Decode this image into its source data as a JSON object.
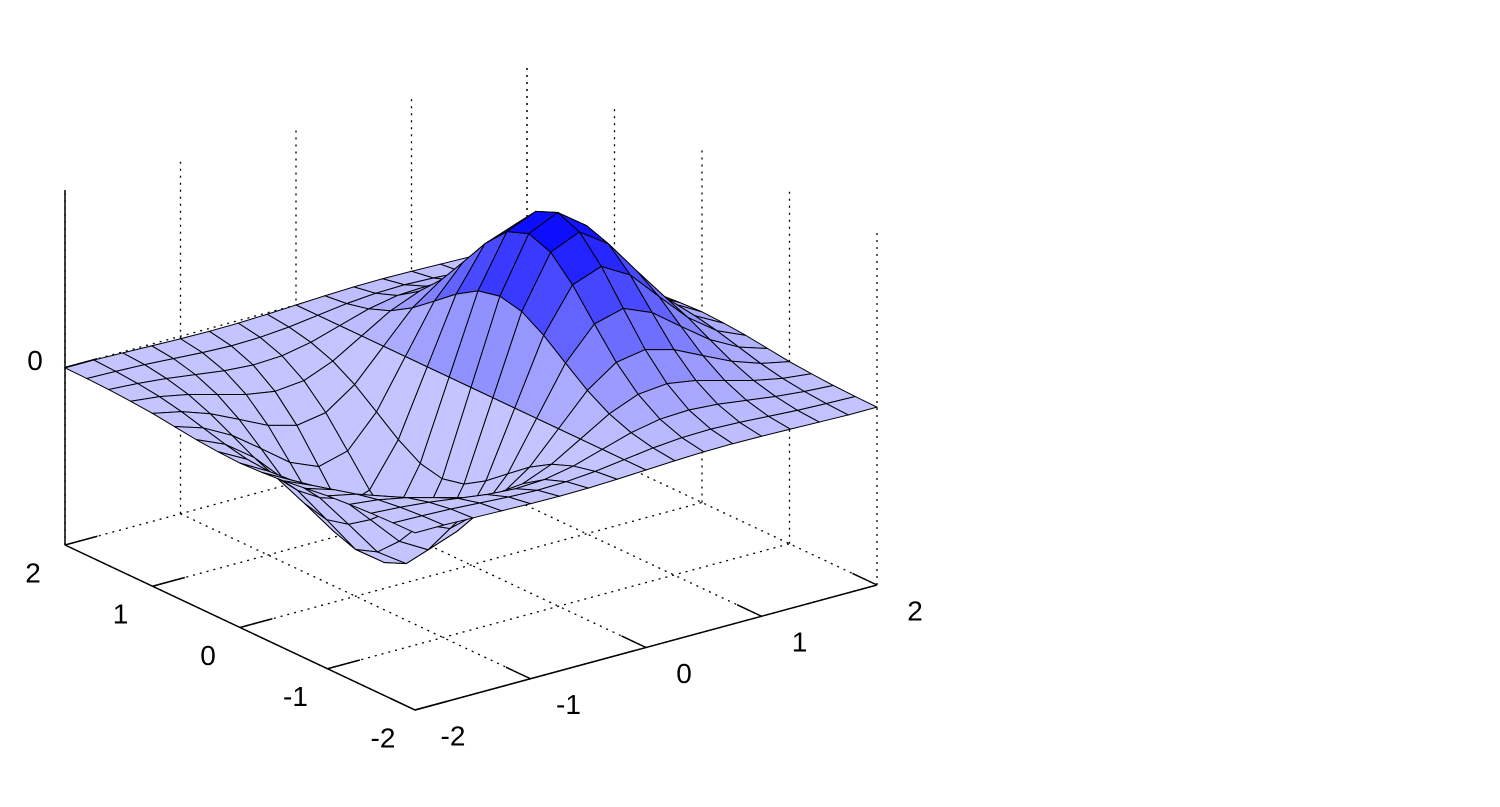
{
  "chart_data": {
    "type": "surface",
    "x": [
      -2,
      -1.75,
      -1.5,
      -1.25,
      -1,
      -0.75,
      -0.5,
      -0.25,
      0,
      0.25,
      0.5,
      0.75,
      1,
      1.25,
      1.5,
      1.75,
      2
    ],
    "y": [
      -2,
      -1.75,
      -1.5,
      -1.25,
      -1,
      -0.75,
      -0.5,
      -0.25,
      0,
      0.25,
      0.5,
      0.75,
      1,
      1.25,
      1.5,
      1.75,
      2
    ],
    "z": [
      [
        -0.001,
        -0.001,
        -0.003,
        -0.005,
        -0.007,
        -0.008,
        -0.007,
        -0.004,
        0,
        0.004,
        0.007,
        0.008,
        0.007,
        0.005,
        0.003,
        0.001,
        0.001
      ],
      [
        -0.002,
        -0.004,
        -0.007,
        -0.012,
        -0.017,
        -0.02,
        -0.018,
        -0.011,
        0,
        0.011,
        0.018,
        0.02,
        0.017,
        0.012,
        0.007,
        0.004,
        0.002
      ],
      [
        -0.004,
        -0.009,
        -0.017,
        -0.028,
        -0.039,
        -0.045,
        -0.041,
        -0.025,
        0,
        0.025,
        0.041,
        0.045,
        0.039,
        0.028,
        0.017,
        0.009,
        0.004
      ],
      [
        -0.008,
        -0.017,
        -0.033,
        -0.055,
        -0.077,
        -0.09,
        -0.082,
        -0.049,
        0,
        0.049,
        0.082,
        0.09,
        0.077,
        0.055,
        0.033,
        0.017,
        0.008
      ],
      [
        -0.013,
        -0.03,
        -0.058,
        -0.096,
        -0.135,
        -0.157,
        -0.143,
        -0.086,
        0,
        0.086,
        0.143,
        0.157,
        0.135,
        0.096,
        0.058,
        0.03,
        0.013
      ],
      [
        -0.021,
        -0.047,
        -0.09,
        -0.149,
        -0.21,
        -0.244,
        -0.222,
        -0.134,
        0,
        0.134,
        0.222,
        0.244,
        0.21,
        0.149,
        0.09,
        0.047,
        0.021
      ],
      [
        -0.029,
        -0.064,
        -0.123,
        -0.204,
        -0.287,
        -0.333,
        -0.303,
        -0.183,
        0,
        0.183,
        0.303,
        0.333,
        0.287,
        0.204,
        0.123,
        0.064,
        0.029
      ],
      [
        -0.034,
        -0.077,
        -0.149,
        -0.246,
        -0.346,
        -0.401,
        -0.366,
        -0.221,
        0,
        0.221,
        0.366,
        0.401,
        0.346,
        0.246,
        0.149,
        0.077,
        0.034
      ],
      [
        -0.037,
        -0.082,
        -0.158,
        -0.262,
        -0.368,
        -0.427,
        -0.389,
        -0.235,
        0,
        0.235,
        0.389,
        0.427,
        0.368,
        0.262,
        0.158,
        0.082,
        0.037
      ],
      [
        -0.034,
        -0.077,
        -0.149,
        -0.246,
        -0.346,
        -0.401,
        -0.366,
        -0.221,
        0,
        0.221,
        0.366,
        0.401,
        0.346,
        0.246,
        0.149,
        0.077,
        0.034
      ],
      [
        -0.029,
        -0.064,
        -0.123,
        -0.204,
        -0.287,
        -0.333,
        -0.303,
        -0.183,
        0,
        0.183,
        0.303,
        0.333,
        0.287,
        0.204,
        0.123,
        0.064,
        0.029
      ],
      [
        -0.021,
        -0.047,
        -0.09,
        -0.149,
        -0.21,
        -0.244,
        -0.222,
        -0.134,
        0,
        0.134,
        0.222,
        0.244,
        0.21,
        0.149,
        0.09,
        0.047,
        0.021
      ],
      [
        -0.013,
        -0.03,
        -0.058,
        -0.096,
        -0.135,
        -0.157,
        -0.143,
        -0.086,
        0,
        0.086,
        0.143,
        0.157,
        0.135,
        0.096,
        0.058,
        0.03,
        0.013
      ],
      [
        -0.008,
        -0.017,
        -0.033,
        -0.055,
        -0.077,
        -0.09,
        -0.082,
        -0.049,
        0,
        0.049,
        0.082,
        0.09,
        0.077,
        0.055,
        0.033,
        0.017,
        0.008
      ],
      [
        -0.004,
        -0.009,
        -0.017,
        -0.028,
        -0.039,
        -0.045,
        -0.041,
        -0.025,
        0,
        0.025,
        0.041,
        0.045,
        0.039,
        0.028,
        0.017,
        0.009,
        0.004
      ],
      [
        -0.002,
        -0.004,
        -0.007,
        -0.012,
        -0.017,
        -0.02,
        -0.018,
        -0.011,
        0,
        0.011,
        0.018,
        0.02,
        0.017,
        0.012,
        0.007,
        0.004,
        0.002
      ],
      [
        -0.001,
        -0.001,
        -0.003,
        -0.005,
        -0.007,
        -0.008,
        -0.007,
        -0.004,
        0,
        0.004,
        0.007,
        0.008,
        0.007,
        0.005,
        0.003,
        0.001,
        0.001
      ]
    ],
    "xlim": [
      -2,
      2
    ],
    "ylim": [
      -2,
      2
    ],
    "zlim": [
      -0.5,
      0.5
    ],
    "xticks": [
      -2,
      -1,
      0,
      1,
      2
    ],
    "yticks": [
      -2,
      -1,
      0,
      1,
      2
    ],
    "zticks": [
      0
    ],
    "grid": true,
    "colormap": [
      "#c4c4ff",
      "#0000ff"
    ],
    "edge_color": "#000000"
  }
}
